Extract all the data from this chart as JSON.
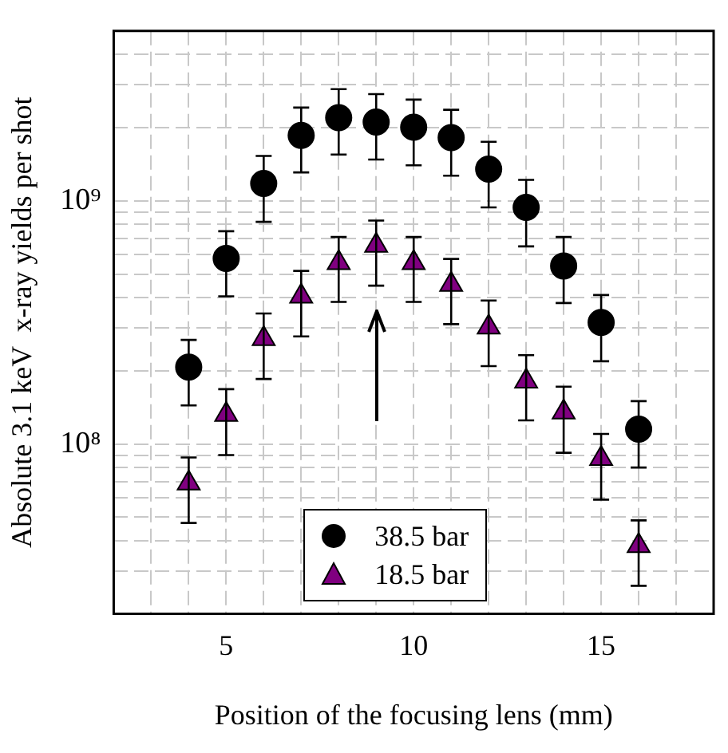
{
  "chart_data": {
    "type": "scatter",
    "xlabel": "Position of the focusing lens (mm)",
    "ylabel": "Absolute 3.1 keV  x-ray yields per shot",
    "x": [
      4,
      5,
      6,
      7,
      8,
      9,
      10,
      11,
      12,
      13,
      14,
      15,
      16
    ],
    "xlim": [
      2,
      18
    ],
    "xticks": [
      {
        "value": 3,
        "label": null
      },
      {
        "value": 4,
        "label": null
      },
      5,
      {
        "value": 6,
        "label": null
      },
      {
        "value": 7,
        "label": null
      },
      {
        "value": 8,
        "label": null
      },
      {
        "value": 9,
        "label": null
      },
      10,
      {
        "value": 11,
        "label": null
      },
      {
        "value": 12,
        "label": null
      },
      {
        "value": 13,
        "label": null
      },
      {
        "value": 14,
        "label": null
      },
      15,
      {
        "value": 16,
        "label": null
      },
      {
        "value": 17,
        "label": null
      }
    ],
    "ylim": [
      20000000.0,
      5000000000.0
    ],
    "log": true,
    "yticks": [
      {
        "value": 20000000.0,
        "label": null
      },
      {
        "value": 30000000.0,
        "label": null
      },
      {
        "value": 40000000.0,
        "label": null
      },
      {
        "value": 50000000.0,
        "label": null
      },
      {
        "value": 60000000.0,
        "label": null
      },
      {
        "value": 70000000.0,
        "label": null
      },
      {
        "value": 80000000.0,
        "label": null
      },
      {
        "value": 90000000.0,
        "label": null
      },
      {
        "value": 100000000.0,
        "label": "10⁸"
      },
      {
        "value": 200000000.0,
        "label": null
      },
      {
        "value": 300000000.0,
        "label": null
      },
      {
        "value": 400000000.0,
        "label": null
      },
      {
        "value": 500000000.0,
        "label": null
      },
      {
        "value": 600000000.0,
        "label": null
      },
      {
        "value": 700000000.0,
        "label": null
      },
      {
        "value": 800000000.0,
        "label": null
      },
      {
        "value": 900000000.0,
        "label": null
      },
      {
        "value": 1000000000.0,
        "label": "10⁹"
      },
      {
        "value": 2000000000.0,
        "label": null
      },
      {
        "value": 3000000000.0,
        "label": null
      },
      {
        "value": 4000000000.0,
        "label": null
      },
      {
        "value": 5000000000.0,
        "label": null
      }
    ],
    "grid": true,
    "legend": "bottom",
    "series": [
      {
        "name": "38.5 bar",
        "color": "#000000",
        "marker": "circle",
        "values": [
          207000000.0,
          580000000.0,
          1180000000.0,
          1860000000.0,
          2200000000.0,
          2110000000.0,
          2010000000.0,
          1820000000.0,
          1350000000.0,
          940000000.0,
          540000000.0,
          316000000.0,
          115000000.0
        ],
        "errors": [
          [
            144000000.0,
            268000000.0
          ],
          [
            405000000.0,
            750000000.0
          ],
          [
            820000000.0,
            1530000000.0
          ],
          [
            1310000000.0,
            2420000000.0
          ],
          [
            1550000000.0,
            2880000000.0
          ],
          [
            1480000000.0,
            2750000000.0
          ],
          [
            1400000000.0,
            2610000000.0
          ],
          [
            1270000000.0,
            2370000000.0
          ],
          [
            940000000.0,
            1750000000.0
          ],
          [
            650000000.0,
            1220000000.0
          ],
          [
            380000000.0,
            710000000.0
          ],
          [
            219000000.0,
            410000000.0
          ],
          [
            80000000.0,
            150000000.0
          ]
        ]
      },
      {
        "name": "18.5 bar",
        "color": "#800080",
        "marker": "triangle",
        "values": [
          69000000.0,
          132000000.0,
          271000000.0,
          405000000.0,
          556000000.0,
          655000000.0,
          556000000.0,
          453000000.0,
          302000000.0,
          181000000.0,
          135000000.0,
          87000000.0,
          38100000.0
        ],
        "errors": [
          [
            47300000.0,
            88000000.0
          ],
          [
            90000000.0,
            168000000.0
          ],
          [
            185000000.0,
            344000000.0
          ],
          [
            277000000.0,
            515000000.0
          ],
          [
            384000000.0,
            710000000.0
          ],
          [
            448000000.0,
            830000000.0
          ],
          [
            384000000.0,
            710000000.0
          ],
          [
            311000000.0,
            577000000.0
          ],
          [
            209000000.0,
            389000000.0
          ],
          [
            125000000.0,
            232000000.0
          ],
          [
            92000000.0,
            172000000.0
          ],
          [
            59000000.0,
            110000000.0
          ],
          [
            26100000.0,
            48500000.0
          ]
        ]
      }
    ]
  }
}
